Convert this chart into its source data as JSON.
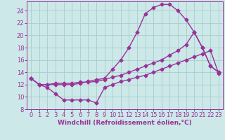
{
  "xlabel": "Windchill (Refroidissement éolien,°C)",
  "background_color": "#cce8e8",
  "grid_color": "#aacccc",
  "line_color": "#993399",
  "xlim": [
    -0.5,
    23.5
  ],
  "ylim": [
    8,
    25.5
  ],
  "yticks": [
    8,
    10,
    12,
    14,
    16,
    18,
    20,
    22,
    24
  ],
  "xticks": [
    0,
    1,
    2,
    3,
    4,
    5,
    6,
    7,
    8,
    9,
    10,
    11,
    12,
    13,
    14,
    15,
    16,
    17,
    18,
    19,
    20,
    21,
    22,
    23
  ],
  "s1_x": [
    0,
    1,
    2,
    3,
    4,
    5,
    6,
    7,
    8,
    9,
    10,
    11,
    12,
    13,
    14,
    15,
    16,
    17,
    18,
    19,
    20,
    21,
    22,
    23
  ],
  "s1_y": [
    13.0,
    12.0,
    11.5,
    10.5,
    9.5,
    9.5,
    9.5,
    9.5,
    9.0,
    11.5,
    12.0,
    12.5,
    12.8,
    13.2,
    13.5,
    14.0,
    14.5,
    15.0,
    15.5,
    16.0,
    16.5,
    17.0,
    17.5,
    13.8
  ],
  "s2_x": [
    0,
    1,
    2,
    3,
    4,
    5,
    6,
    7,
    8,
    9,
    10,
    11,
    12,
    13,
    14,
    15,
    16,
    17,
    18,
    19,
    20,
    21,
    22,
    23
  ],
  "s2_y": [
    13.0,
    12.0,
    12.0,
    12.2,
    12.2,
    12.2,
    12.4,
    12.4,
    12.5,
    12.8,
    13.2,
    13.5,
    14.0,
    14.5,
    15.0,
    15.5,
    16.0,
    16.8,
    17.5,
    18.5,
    20.5,
    18.0,
    15.0,
    14.0
  ],
  "s3_x": [
    0,
    1,
    2,
    3,
    4,
    5,
    6,
    7,
    8,
    9,
    10,
    11,
    12,
    13,
    14,
    15,
    16,
    17,
    18,
    19,
    20,
    21,
    22,
    23
  ],
  "s3_y": [
    13.0,
    12.0,
    12.0,
    12.0,
    12.0,
    12.0,
    12.2,
    12.5,
    12.8,
    13.0,
    14.5,
    16.0,
    18.0,
    20.5,
    23.5,
    24.5,
    25.0,
    25.0,
    24.0,
    22.5,
    20.5,
    18.0,
    15.0,
    14.0
  ],
  "xlabel_fontsize": 6.5,
  "tick_fontsize": 6,
  "line_width": 1.0,
  "marker_size": 2.5
}
